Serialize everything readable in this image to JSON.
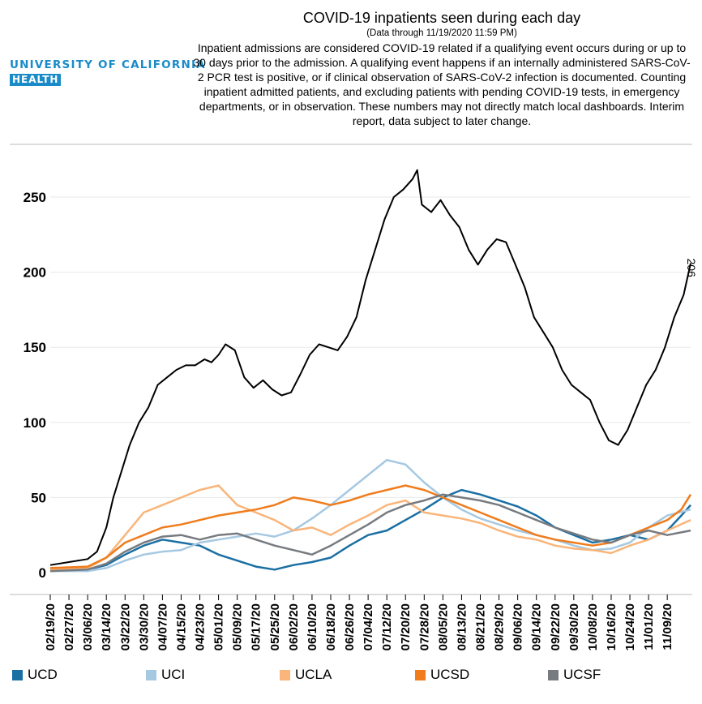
{
  "logo": {
    "line1": "UNIVERSITY OF CALIFORNIA",
    "line2": "HEALTH"
  },
  "title": "COVID-19 inpatients seen during each day",
  "subtitle": "(Data through 11/19/2020 11:59 PM)",
  "note": "Inpatient admissions are considered COVID-19 related if a qualifying event occurs during or up to 30 days prior to the admission. A qualifying event happens if an internally administered SARS-CoV-2 PCR test is positive, or if clinical observation of SARS-CoV-2 infection is documented. Counting inpatient admitted patients, and excluding patients with pending COVID-19 tests, in emergency departments, or in observation. These numbers may not directly match local dashboards. Interim report, data subject to later change.",
  "chart_data": {
    "type": "line",
    "x_start": "2020-02-19",
    "x_end": "2020-11-19",
    "x_ticks": [
      "02/19/20",
      "02/27/20",
      "03/06/20",
      "03/14/20",
      "03/22/20",
      "03/30/20",
      "04/07/20",
      "04/15/20",
      "04/23/20",
      "05/01/20",
      "05/09/20",
      "05/17/20",
      "05/25/20",
      "06/02/20",
      "06/10/20",
      "06/18/20",
      "06/26/20",
      "07/04/20",
      "07/12/20",
      "07/20/20",
      "07/28/20",
      "08/05/20",
      "08/13/20",
      "08/21/20",
      "08/29/20",
      "09/06/20",
      "09/14/20",
      "09/22/20",
      "09/30/20",
      "10/08/20",
      "10/16/20",
      "10/24/20",
      "11/01/20",
      "11/09/20"
    ],
    "y_ticks": [
      0,
      50,
      100,
      150,
      200,
      250
    ],
    "ylim": [
      0,
      270
    ],
    "grid": true,
    "legend_position": "bottom",
    "end_label": "206",
    "series": [
      {
        "name": "",
        "color": "#000000",
        "points": [
          [
            "2020-02-19",
            5
          ],
          [
            "2020-02-27",
            7
          ],
          [
            "2020-03-06",
            9
          ],
          [
            "2020-03-10",
            14
          ],
          [
            "2020-03-14",
            30
          ],
          [
            "2020-03-17",
            50
          ],
          [
            "2020-03-20",
            65
          ],
          [
            "2020-03-24",
            85
          ],
          [
            "2020-03-28",
            100
          ],
          [
            "2020-04-01",
            110
          ],
          [
            "2020-04-05",
            125
          ],
          [
            "2020-04-09",
            130
          ],
          [
            "2020-04-13",
            135
          ],
          [
            "2020-04-17",
            138
          ],
          [
            "2020-04-21",
            138
          ],
          [
            "2020-04-25",
            142
          ],
          [
            "2020-04-28",
            140
          ],
          [
            "2020-05-01",
            145
          ],
          [
            "2020-05-04",
            152
          ],
          [
            "2020-05-08",
            148
          ],
          [
            "2020-05-12",
            130
          ],
          [
            "2020-05-16",
            123
          ],
          [
            "2020-05-20",
            128
          ],
          [
            "2020-05-24",
            122
          ],
          [
            "2020-05-28",
            118
          ],
          [
            "2020-06-01",
            120
          ],
          [
            "2020-06-05",
            132
          ],
          [
            "2020-06-09",
            145
          ],
          [
            "2020-06-13",
            152
          ],
          [
            "2020-06-17",
            150
          ],
          [
            "2020-06-21",
            148
          ],
          [
            "2020-06-25",
            157
          ],
          [
            "2020-06-29",
            170
          ],
          [
            "2020-07-03",
            195
          ],
          [
            "2020-07-07",
            215
          ],
          [
            "2020-07-11",
            235
          ],
          [
            "2020-07-15",
            250
          ],
          [
            "2020-07-19",
            255
          ],
          [
            "2020-07-23",
            262
          ],
          [
            "2020-07-25",
            268
          ],
          [
            "2020-07-27",
            245
          ],
          [
            "2020-07-31",
            240
          ],
          [
            "2020-08-04",
            248
          ],
          [
            "2020-08-08",
            238
          ],
          [
            "2020-08-12",
            230
          ],
          [
            "2020-08-16",
            215
          ],
          [
            "2020-08-20",
            205
          ],
          [
            "2020-08-24",
            215
          ],
          [
            "2020-08-28",
            222
          ],
          [
            "2020-09-01",
            220
          ],
          [
            "2020-09-05",
            205
          ],
          [
            "2020-09-09",
            190
          ],
          [
            "2020-09-13",
            170
          ],
          [
            "2020-09-17",
            160
          ],
          [
            "2020-09-21",
            150
          ],
          [
            "2020-09-25",
            135
          ],
          [
            "2020-09-29",
            125
          ],
          [
            "2020-10-03",
            120
          ],
          [
            "2020-10-07",
            115
          ],
          [
            "2020-10-11",
            100
          ],
          [
            "2020-10-15",
            88
          ],
          [
            "2020-10-19",
            85
          ],
          [
            "2020-10-23",
            95
          ],
          [
            "2020-10-27",
            110
          ],
          [
            "2020-10-31",
            125
          ],
          [
            "2020-11-04",
            135
          ],
          [
            "2020-11-08",
            150
          ],
          [
            "2020-11-12",
            170
          ],
          [
            "2020-11-16",
            185
          ],
          [
            "2020-11-19",
            206
          ]
        ]
      },
      {
        "name": "UCD",
        "color": "#1a6fa3",
        "points": [
          [
            "2020-02-19",
            1
          ],
          [
            "2020-03-06",
            2
          ],
          [
            "2020-03-14",
            5
          ],
          [
            "2020-03-22",
            12
          ],
          [
            "2020-03-30",
            18
          ],
          [
            "2020-04-07",
            22
          ],
          [
            "2020-04-15",
            20
          ],
          [
            "2020-04-23",
            18
          ],
          [
            "2020-05-01",
            12
          ],
          [
            "2020-05-09",
            8
          ],
          [
            "2020-05-17",
            4
          ],
          [
            "2020-05-25",
            2
          ],
          [
            "2020-06-02",
            5
          ],
          [
            "2020-06-10",
            7
          ],
          [
            "2020-06-18",
            10
          ],
          [
            "2020-06-26",
            18
          ],
          [
            "2020-07-04",
            25
          ],
          [
            "2020-07-12",
            28
          ],
          [
            "2020-07-20",
            35
          ],
          [
            "2020-07-28",
            42
          ],
          [
            "2020-08-05",
            50
          ],
          [
            "2020-08-13",
            55
          ],
          [
            "2020-08-21",
            52
          ],
          [
            "2020-08-29",
            48
          ],
          [
            "2020-09-06",
            44
          ],
          [
            "2020-09-14",
            38
          ],
          [
            "2020-09-22",
            30
          ],
          [
            "2020-09-30",
            25
          ],
          [
            "2020-10-08",
            20
          ],
          [
            "2020-10-16",
            22
          ],
          [
            "2020-10-24",
            25
          ],
          [
            "2020-11-01",
            22
          ],
          [
            "2020-11-09",
            28
          ],
          [
            "2020-11-15",
            38
          ],
          [
            "2020-11-19",
            45
          ]
        ]
      },
      {
        "name": "UCI",
        "color": "#a6c9e2",
        "points": [
          [
            "2020-02-19",
            1
          ],
          [
            "2020-03-06",
            1
          ],
          [
            "2020-03-14",
            3
          ],
          [
            "2020-03-22",
            8
          ],
          [
            "2020-03-30",
            12
          ],
          [
            "2020-04-07",
            14
          ],
          [
            "2020-04-15",
            15
          ],
          [
            "2020-04-23",
            20
          ],
          [
            "2020-05-01",
            22
          ],
          [
            "2020-05-09",
            24
          ],
          [
            "2020-05-17",
            26
          ],
          [
            "2020-05-25",
            24
          ],
          [
            "2020-06-02",
            28
          ],
          [
            "2020-06-10",
            36
          ],
          [
            "2020-06-18",
            45
          ],
          [
            "2020-06-26",
            55
          ],
          [
            "2020-07-04",
            65
          ],
          [
            "2020-07-12",
            75
          ],
          [
            "2020-07-20",
            72
          ],
          [
            "2020-07-28",
            60
          ],
          [
            "2020-08-05",
            50
          ],
          [
            "2020-08-13",
            42
          ],
          [
            "2020-08-21",
            36
          ],
          [
            "2020-08-29",
            32
          ],
          [
            "2020-09-06",
            28
          ],
          [
            "2020-09-14",
            25
          ],
          [
            "2020-09-22",
            22
          ],
          [
            "2020-09-30",
            18
          ],
          [
            "2020-10-08",
            15
          ],
          [
            "2020-10-16",
            16
          ],
          [
            "2020-10-24",
            20
          ],
          [
            "2020-11-01",
            30
          ],
          [
            "2020-11-09",
            38
          ],
          [
            "2020-11-19",
            42
          ]
        ]
      },
      {
        "name": "UCLA",
        "color": "#f9b57a",
        "points": [
          [
            "2020-02-19",
            2
          ],
          [
            "2020-03-06",
            3
          ],
          [
            "2020-03-14",
            10
          ],
          [
            "2020-03-22",
            25
          ],
          [
            "2020-03-30",
            40
          ],
          [
            "2020-04-07",
            45
          ],
          [
            "2020-04-15",
            50
          ],
          [
            "2020-04-23",
            55
          ],
          [
            "2020-05-01",
            58
          ],
          [
            "2020-05-09",
            45
          ],
          [
            "2020-05-17",
            40
          ],
          [
            "2020-05-25",
            35
          ],
          [
            "2020-06-02",
            28
          ],
          [
            "2020-06-10",
            30
          ],
          [
            "2020-06-18",
            25
          ],
          [
            "2020-06-26",
            32
          ],
          [
            "2020-07-04",
            38
          ],
          [
            "2020-07-12",
            45
          ],
          [
            "2020-07-20",
            48
          ],
          [
            "2020-07-28",
            40
          ],
          [
            "2020-08-05",
            38
          ],
          [
            "2020-08-13",
            36
          ],
          [
            "2020-08-21",
            33
          ],
          [
            "2020-08-29",
            28
          ],
          [
            "2020-09-06",
            24
          ],
          [
            "2020-09-14",
            22
          ],
          [
            "2020-09-22",
            18
          ],
          [
            "2020-09-30",
            16
          ],
          [
            "2020-10-08",
            15
          ],
          [
            "2020-10-16",
            13
          ],
          [
            "2020-10-24",
            18
          ],
          [
            "2020-11-01",
            22
          ],
          [
            "2020-11-09",
            28
          ],
          [
            "2020-11-19",
            35
          ]
        ]
      },
      {
        "name": "UCSD",
        "color": "#f07c1c",
        "points": [
          [
            "2020-02-19",
            3
          ],
          [
            "2020-03-06",
            4
          ],
          [
            "2020-03-14",
            10
          ],
          [
            "2020-03-22",
            20
          ],
          [
            "2020-03-30",
            25
          ],
          [
            "2020-04-07",
            30
          ],
          [
            "2020-04-15",
            32
          ],
          [
            "2020-04-23",
            35
          ],
          [
            "2020-05-01",
            38
          ],
          [
            "2020-05-09",
            40
          ],
          [
            "2020-05-17",
            42
          ],
          [
            "2020-05-25",
            45
          ],
          [
            "2020-06-02",
            50
          ],
          [
            "2020-06-10",
            48
          ],
          [
            "2020-06-18",
            45
          ],
          [
            "2020-06-26",
            48
          ],
          [
            "2020-07-04",
            52
          ],
          [
            "2020-07-12",
            55
          ],
          [
            "2020-07-20",
            58
          ],
          [
            "2020-07-28",
            55
          ],
          [
            "2020-08-05",
            50
          ],
          [
            "2020-08-13",
            45
          ],
          [
            "2020-08-21",
            40
          ],
          [
            "2020-08-29",
            35
          ],
          [
            "2020-09-06",
            30
          ],
          [
            "2020-09-14",
            25
          ],
          [
            "2020-09-22",
            22
          ],
          [
            "2020-09-30",
            20
          ],
          [
            "2020-10-08",
            18
          ],
          [
            "2020-10-16",
            20
          ],
          [
            "2020-10-24",
            25
          ],
          [
            "2020-11-01",
            30
          ],
          [
            "2020-11-09",
            35
          ],
          [
            "2020-11-15",
            42
          ],
          [
            "2020-11-19",
            52
          ]
        ]
      },
      {
        "name": "UCSF",
        "color": "#777b80",
        "points": [
          [
            "2020-02-19",
            1
          ],
          [
            "2020-03-06",
            2
          ],
          [
            "2020-03-14",
            6
          ],
          [
            "2020-03-22",
            14
          ],
          [
            "2020-03-30",
            20
          ],
          [
            "2020-04-07",
            24
          ],
          [
            "2020-04-15",
            25
          ],
          [
            "2020-04-23",
            22
          ],
          [
            "2020-05-01",
            25
          ],
          [
            "2020-05-09",
            26
          ],
          [
            "2020-05-17",
            22
          ],
          [
            "2020-05-25",
            18
          ],
          [
            "2020-06-02",
            15
          ],
          [
            "2020-06-10",
            12
          ],
          [
            "2020-06-18",
            18
          ],
          [
            "2020-06-26",
            25
          ],
          [
            "2020-07-04",
            32
          ],
          [
            "2020-07-12",
            40
          ],
          [
            "2020-07-20",
            45
          ],
          [
            "2020-07-28",
            48
          ],
          [
            "2020-08-05",
            52
          ],
          [
            "2020-08-13",
            50
          ],
          [
            "2020-08-21",
            48
          ],
          [
            "2020-08-29",
            45
          ],
          [
            "2020-09-06",
            40
          ],
          [
            "2020-09-14",
            35
          ],
          [
            "2020-09-22",
            30
          ],
          [
            "2020-09-30",
            26
          ],
          [
            "2020-10-08",
            22
          ],
          [
            "2020-10-16",
            20
          ],
          [
            "2020-10-24",
            25
          ],
          [
            "2020-11-01",
            28
          ],
          [
            "2020-11-09",
            25
          ],
          [
            "2020-11-19",
            28
          ]
        ]
      }
    ]
  },
  "legend": [
    {
      "label": "UCD",
      "color": "#1a6fa3"
    },
    {
      "label": "UCI",
      "color": "#a6c9e2"
    },
    {
      "label": "UCLA",
      "color": "#f9b57a"
    },
    {
      "label": "UCSD",
      "color": "#f07c1c"
    },
    {
      "label": "UCSF",
      "color": "#777b80"
    }
  ]
}
